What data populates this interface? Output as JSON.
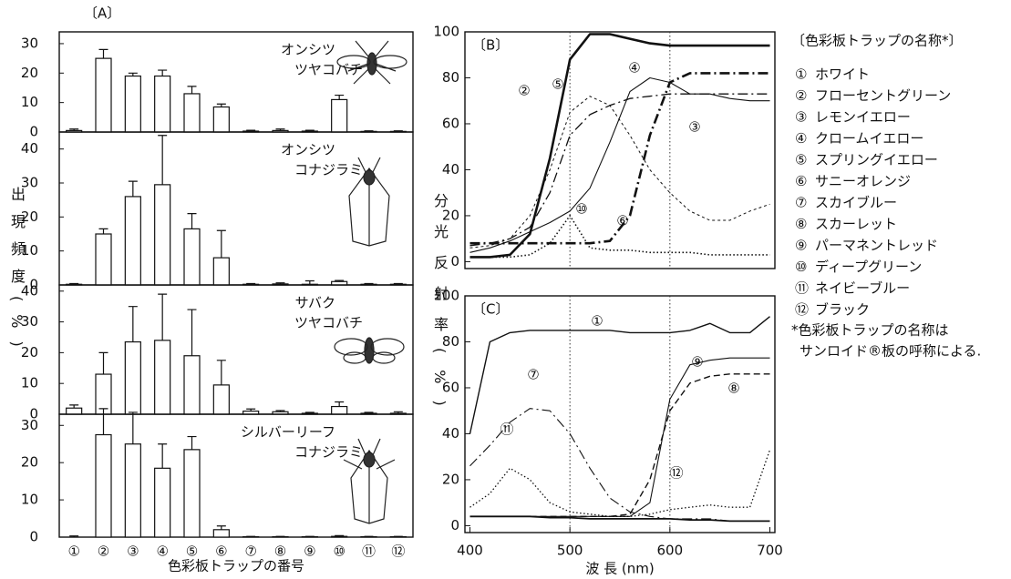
{
  "chart_data": [
    {
      "type": "bar",
      "label": "〔A〕",
      "ylabel": "出現頻度(%)",
      "xlabel": "色彩板トラップの番号",
      "categories": [
        "①",
        "②",
        "③",
        "④",
        "⑤",
        "⑥",
        "⑦",
        "⑧",
        "⑨",
        "⑩",
        "⑪",
        "⑫"
      ],
      "panels": [
        {
          "title": [
            "オンシツ",
            "ツヤコバチ"
          ],
          "ylim": [
            0,
            34
          ],
          "yticks": [
            0,
            10,
            20,
            30
          ],
          "values": [
            0.5,
            25,
            19,
            19,
            13,
            8.5,
            0.3,
            0.5,
            0.3,
            11,
            0.2,
            0.2
          ],
          "errors": [
            0.5,
            3,
            1,
            2,
            2.5,
            1,
            0.3,
            0.5,
            0.3,
            1.5,
            0.2,
            0.2
          ]
        },
        {
          "title": [
            "オンシツ",
            "コナジラミ"
          ],
          "ylim": [
            0,
            45
          ],
          "yticks": [
            0,
            10,
            20,
            30,
            40
          ],
          "values": [
            0.2,
            15,
            26,
            29.5,
            16.5,
            8,
            0.2,
            0.3,
            0.2,
            1,
            0.2,
            0.2
          ],
          "errors": [
            0.2,
            1.5,
            4.5,
            14.5,
            4.5,
            8,
            0.2,
            0.3,
            1,
            0.3,
            0.2,
            0.2
          ]
        },
        {
          "title": [
            "サバク",
            "ツヤコバチ"
          ],
          "ylim": [
            0,
            42
          ],
          "yticks": [
            0,
            10,
            20,
            30,
            40
          ],
          "values": [
            2,
            13,
            23.5,
            24,
            19,
            9.5,
            1,
            0.8,
            0.3,
            2.5,
            0.3,
            0.3
          ],
          "errors": [
            1,
            7,
            11.5,
            15,
            15,
            8,
            0.7,
            0.4,
            0.3,
            1.5,
            0.3,
            0.5
          ]
        },
        {
          "title": [
            "シルバーリーフ",
            "コナジラミ"
          ],
          "ylim": [
            0,
            33
          ],
          "yticks": [
            0,
            10,
            20,
            30
          ],
          "values": [
            0,
            27.5,
            25,
            18.5,
            23.5,
            2,
            0.1,
            0.1,
            0.1,
            0.2,
            0.1,
            0.1
          ],
          "errors": [
            0.3,
            7,
            8.5,
            6.5,
            3.5,
            1,
            0.1,
            0.1,
            0.1,
            0.2,
            0.1,
            0.1
          ]
        }
      ]
    },
    {
      "type": "line",
      "label": "〔B〕",
      "ylabel": "分光反射率(%)",
      "x": [
        400,
        420,
        440,
        460,
        480,
        500,
        520,
        540,
        560,
        580,
        600,
        620,
        640,
        660,
        680,
        700
      ],
      "xlim": [
        395,
        705
      ],
      "ylim": [
        -3,
        100
      ],
      "yticks": [
        0,
        20,
        40,
        60,
        80,
        100
      ],
      "vlines": [
        500,
        600
      ],
      "series": [
        {
          "label": "②",
          "color": "#111",
          "linestyle": "solid",
          "linewidth": 2.6,
          "values": [
            2,
            2,
            3,
            12,
            45,
            88,
            99,
            99,
            97,
            95,
            94,
            94,
            94,
            94,
            94,
            94
          ]
        },
        {
          "label": "⑤",
          "color": "#111",
          "linestyle": "shortdash",
          "linewidth": 1,
          "values": [
            6,
            7,
            10,
            20,
            40,
            65,
            72,
            68,
            55,
            40,
            30,
            22,
            18,
            18,
            22,
            25
          ]
        },
        {
          "label": "③",
          "color": "#111",
          "linestyle": "dashdot",
          "linewidth": 1.3,
          "values": [
            7,
            8,
            10,
            15,
            30,
            55,
            64,
            68,
            71,
            72,
            73,
            73,
            73,
            73,
            73,
            73
          ]
        },
        {
          "label": "④",
          "color": "#111",
          "linestyle": "solid",
          "linewidth": 1.1,
          "values": [
            4,
            6,
            9,
            13,
            17,
            22,
            32,
            52,
            74,
            80,
            78,
            73,
            73,
            71,
            70,
            70
          ]
        },
        {
          "label": "⑥",
          "color": "#111",
          "linestyle": "dashdot",
          "linewidth": 2.6,
          "values": [
            8,
            8,
            8,
            8,
            8,
            8,
            8,
            9,
            20,
            55,
            78,
            82,
            82,
            82,
            82,
            82
          ]
        },
        {
          "label": "⑩",
          "color": "#111",
          "linestyle": "dotted",
          "linewidth": 1.6,
          "values": [
            2,
            2,
            2,
            3,
            8,
            20,
            6,
            5,
            5,
            4,
            4,
            4,
            3,
            3,
            3,
            3
          ]
        }
      ]
    },
    {
      "type": "line",
      "label": "〔C〕",
      "xlabel": "波 長 (nm)",
      "x": [
        400,
        420,
        440,
        460,
        480,
        500,
        520,
        540,
        560,
        580,
        600,
        620,
        640,
        660,
        680,
        700
      ],
      "xlim": [
        395,
        705
      ],
      "xticks": [
        400,
        500,
        600,
        700
      ],
      "ylim": [
        -3,
        100
      ],
      "yticks": [
        0,
        20,
        40,
        60,
        80,
        100
      ],
      "vlines": [
        500,
        600
      ],
      "series": [
        {
          "label": "①",
          "color": "#111",
          "linestyle": "solid",
          "linewidth": 1.4,
          "values": [
            40,
            80,
            84,
            85,
            85,
            85,
            85,
            85,
            84,
            84,
            84,
            85,
            88,
            84,
            84,
            91
          ]
        },
        {
          "label": "⑦",
          "color": "#111",
          "linestyle": "dashdot",
          "linewidth": 1.1,
          "values": [
            26,
            35,
            45,
            51,
            50,
            40,
            25,
            12,
            6,
            4,
            3,
            3,
            3,
            2,
            2,
            2
          ]
        },
        {
          "label": "⑪",
          "color": "#111",
          "linestyle": "dotted",
          "linewidth": 1.3,
          "values": [
            8,
            14,
            25,
            20,
            10,
            6,
            5,
            4,
            4,
            5,
            7,
            8,
            9,
            8,
            8,
            33
          ]
        },
        {
          "label": "⑨",
          "color": "#111",
          "linestyle": "solid",
          "linewidth": 1.1,
          "values": [
            4,
            4,
            4,
            4,
            4,
            4,
            4,
            4,
            4,
            10,
            55,
            70,
            72,
            73,
            73,
            73
          ]
        },
        {
          "label": "⑧",
          "color": "#111",
          "linestyle": "dashed",
          "linewidth": 1.4,
          "values": [
            4,
            4,
            4,
            4,
            4,
            4,
            4,
            4,
            5,
            20,
            50,
            62,
            65,
            66,
            66,
            66
          ]
        },
        {
          "label": "⑫",
          "color": "#111",
          "linestyle": "solid",
          "linewidth": 1.8,
          "values": [
            4,
            4,
            4,
            4,
            3.5,
            3.5,
            3,
            3,
            3,
            3,
            3,
            2.5,
            2.5,
            2,
            2,
            2
          ]
        }
      ]
    }
  ],
  "legend": {
    "title": "〔色彩板トラップの名称*〕",
    "items": [
      {
        "key": "①",
        "name": "ホワイト"
      },
      {
        "key": "②",
        "name": "フローセントグリーン"
      },
      {
        "key": "③",
        "name": "レモンイエロー"
      },
      {
        "key": "④",
        "name": "クロームイエロー"
      },
      {
        "key": "⑤",
        "name": "スプリングイエロー"
      },
      {
        "key": "⑥",
        "name": "サニーオレンジ"
      },
      {
        "key": "⑦",
        "name": "スカイブルー"
      },
      {
        "key": "⑧",
        "name": "スカーレット"
      },
      {
        "key": "⑨",
        "name": "パーマネントレッド"
      },
      {
        "key": "⑩",
        "name": "ディープグリーン"
      },
      {
        "key": "⑪",
        "name": "ネイビーブルー"
      },
      {
        "key": "⑫",
        "name": "ブラック"
      }
    ],
    "note": [
      "*色彩板トラップの名称は",
      "サンロイド®板の呼称による."
    ]
  }
}
